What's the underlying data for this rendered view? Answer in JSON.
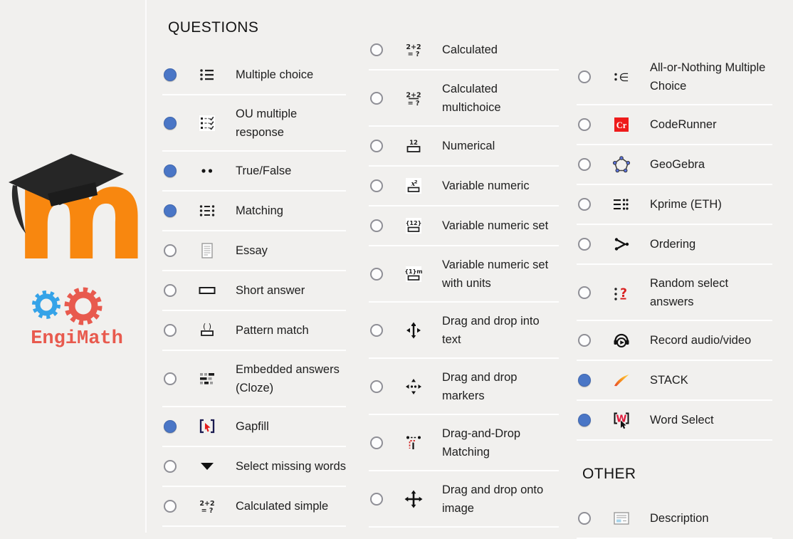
{
  "colors": {
    "background": "#f1f0ee",
    "radio_selected": "#4a76c6",
    "moodle_orange": "#f8870f",
    "cap_black": "#262626",
    "coderunner_red": "#ee1b1b",
    "engimath_red": "#e85a4e",
    "engimath_blue": "#35a3e8"
  },
  "logos": {
    "moodle_letter": "m",
    "engimath_text": "EngiMath"
  },
  "columns": [
    {
      "entries": [
        {
          "type": "header",
          "label": "QUESTIONS"
        },
        {
          "type": "item",
          "label": "Multiple choice",
          "icon": "multiple-choice-icon",
          "selected": true
        },
        {
          "type": "item",
          "label": "OU multiple response",
          "icon": "ou-multiple-response-icon",
          "selected": true
        },
        {
          "type": "item",
          "label": "True/False",
          "icon": "true-false-icon",
          "selected": true
        },
        {
          "type": "item",
          "label": "Matching",
          "icon": "matching-icon",
          "selected": true
        },
        {
          "type": "item",
          "label": "Essay",
          "icon": "essay-icon",
          "selected": false
        },
        {
          "type": "item",
          "label": "Short answer",
          "icon": "short-answer-icon",
          "selected": false
        },
        {
          "type": "item",
          "label": "Pattern match",
          "icon": "pattern-match-icon",
          "selected": false
        },
        {
          "type": "item",
          "label": "Embedded answers (Cloze)",
          "icon": "embedded-answers-icon",
          "selected": false
        },
        {
          "type": "item",
          "label": "Gapfill",
          "icon": "gapfill-icon",
          "selected": true
        },
        {
          "type": "item",
          "label": "Select missing words",
          "icon": "select-missing-words-icon",
          "selected": false
        },
        {
          "type": "item",
          "label": "Calculated simple",
          "icon": "calculated-simple-icon",
          "selected": false
        }
      ]
    },
    {
      "entries": [
        {
          "type": "item",
          "label": "Calculated",
          "icon": "calculated-icon",
          "selected": false
        },
        {
          "type": "item",
          "label": "Calculated multichoice",
          "icon": "calculated-multichoice-icon",
          "selected": false
        },
        {
          "type": "item",
          "label": "Numerical",
          "icon": "numerical-icon",
          "selected": false
        },
        {
          "type": "item",
          "label": "Variable numeric",
          "icon": "variable-numeric-icon",
          "selected": false
        },
        {
          "type": "item",
          "label": "Variable numeric set",
          "icon": "variable-numeric-set-icon",
          "selected": false
        },
        {
          "type": "item",
          "label": "Variable numeric set with units",
          "icon": "variable-numeric-set-units-icon",
          "selected": false
        },
        {
          "type": "item",
          "label": "Drag and drop into text",
          "icon": "drag-drop-into-text-icon",
          "selected": false
        },
        {
          "type": "item",
          "label": "Drag and drop markers",
          "icon": "drag-drop-markers-icon",
          "selected": false
        },
        {
          "type": "item",
          "label": "Drag-and-Drop Matching",
          "icon": "drag-drop-matching-icon",
          "selected": false
        },
        {
          "type": "item",
          "label": "Drag and drop onto image",
          "icon": "drag-drop-onto-image-icon",
          "selected": false
        }
      ]
    },
    {
      "entries": [
        {
          "type": "item",
          "label": "All-or-Nothing Multiple Choice",
          "icon": "all-or-nothing-icon",
          "selected": false
        },
        {
          "type": "item",
          "label": "CodeRunner",
          "icon": "coderunner-icon",
          "selected": false
        },
        {
          "type": "item",
          "label": "GeoGebra",
          "icon": "geogebra-icon",
          "selected": false
        },
        {
          "type": "item",
          "label": "Kprime (ETH)",
          "icon": "kprime-icon",
          "selected": false
        },
        {
          "type": "item",
          "label": "Ordering",
          "icon": "ordering-icon",
          "selected": false
        },
        {
          "type": "item",
          "label": "Random select answers",
          "icon": "random-select-answers-icon",
          "selected": false
        },
        {
          "type": "item",
          "label": "Record audio/video",
          "icon": "record-audio-video-icon",
          "selected": false
        },
        {
          "type": "item",
          "label": "STACK",
          "icon": "stack-icon",
          "selected": true
        },
        {
          "type": "item",
          "label": "Word Select",
          "icon": "word-select-icon",
          "selected": true
        },
        {
          "type": "header",
          "label": "OTHER"
        },
        {
          "type": "item",
          "label": "Description",
          "icon": "description-icon",
          "selected": false
        }
      ]
    }
  ]
}
